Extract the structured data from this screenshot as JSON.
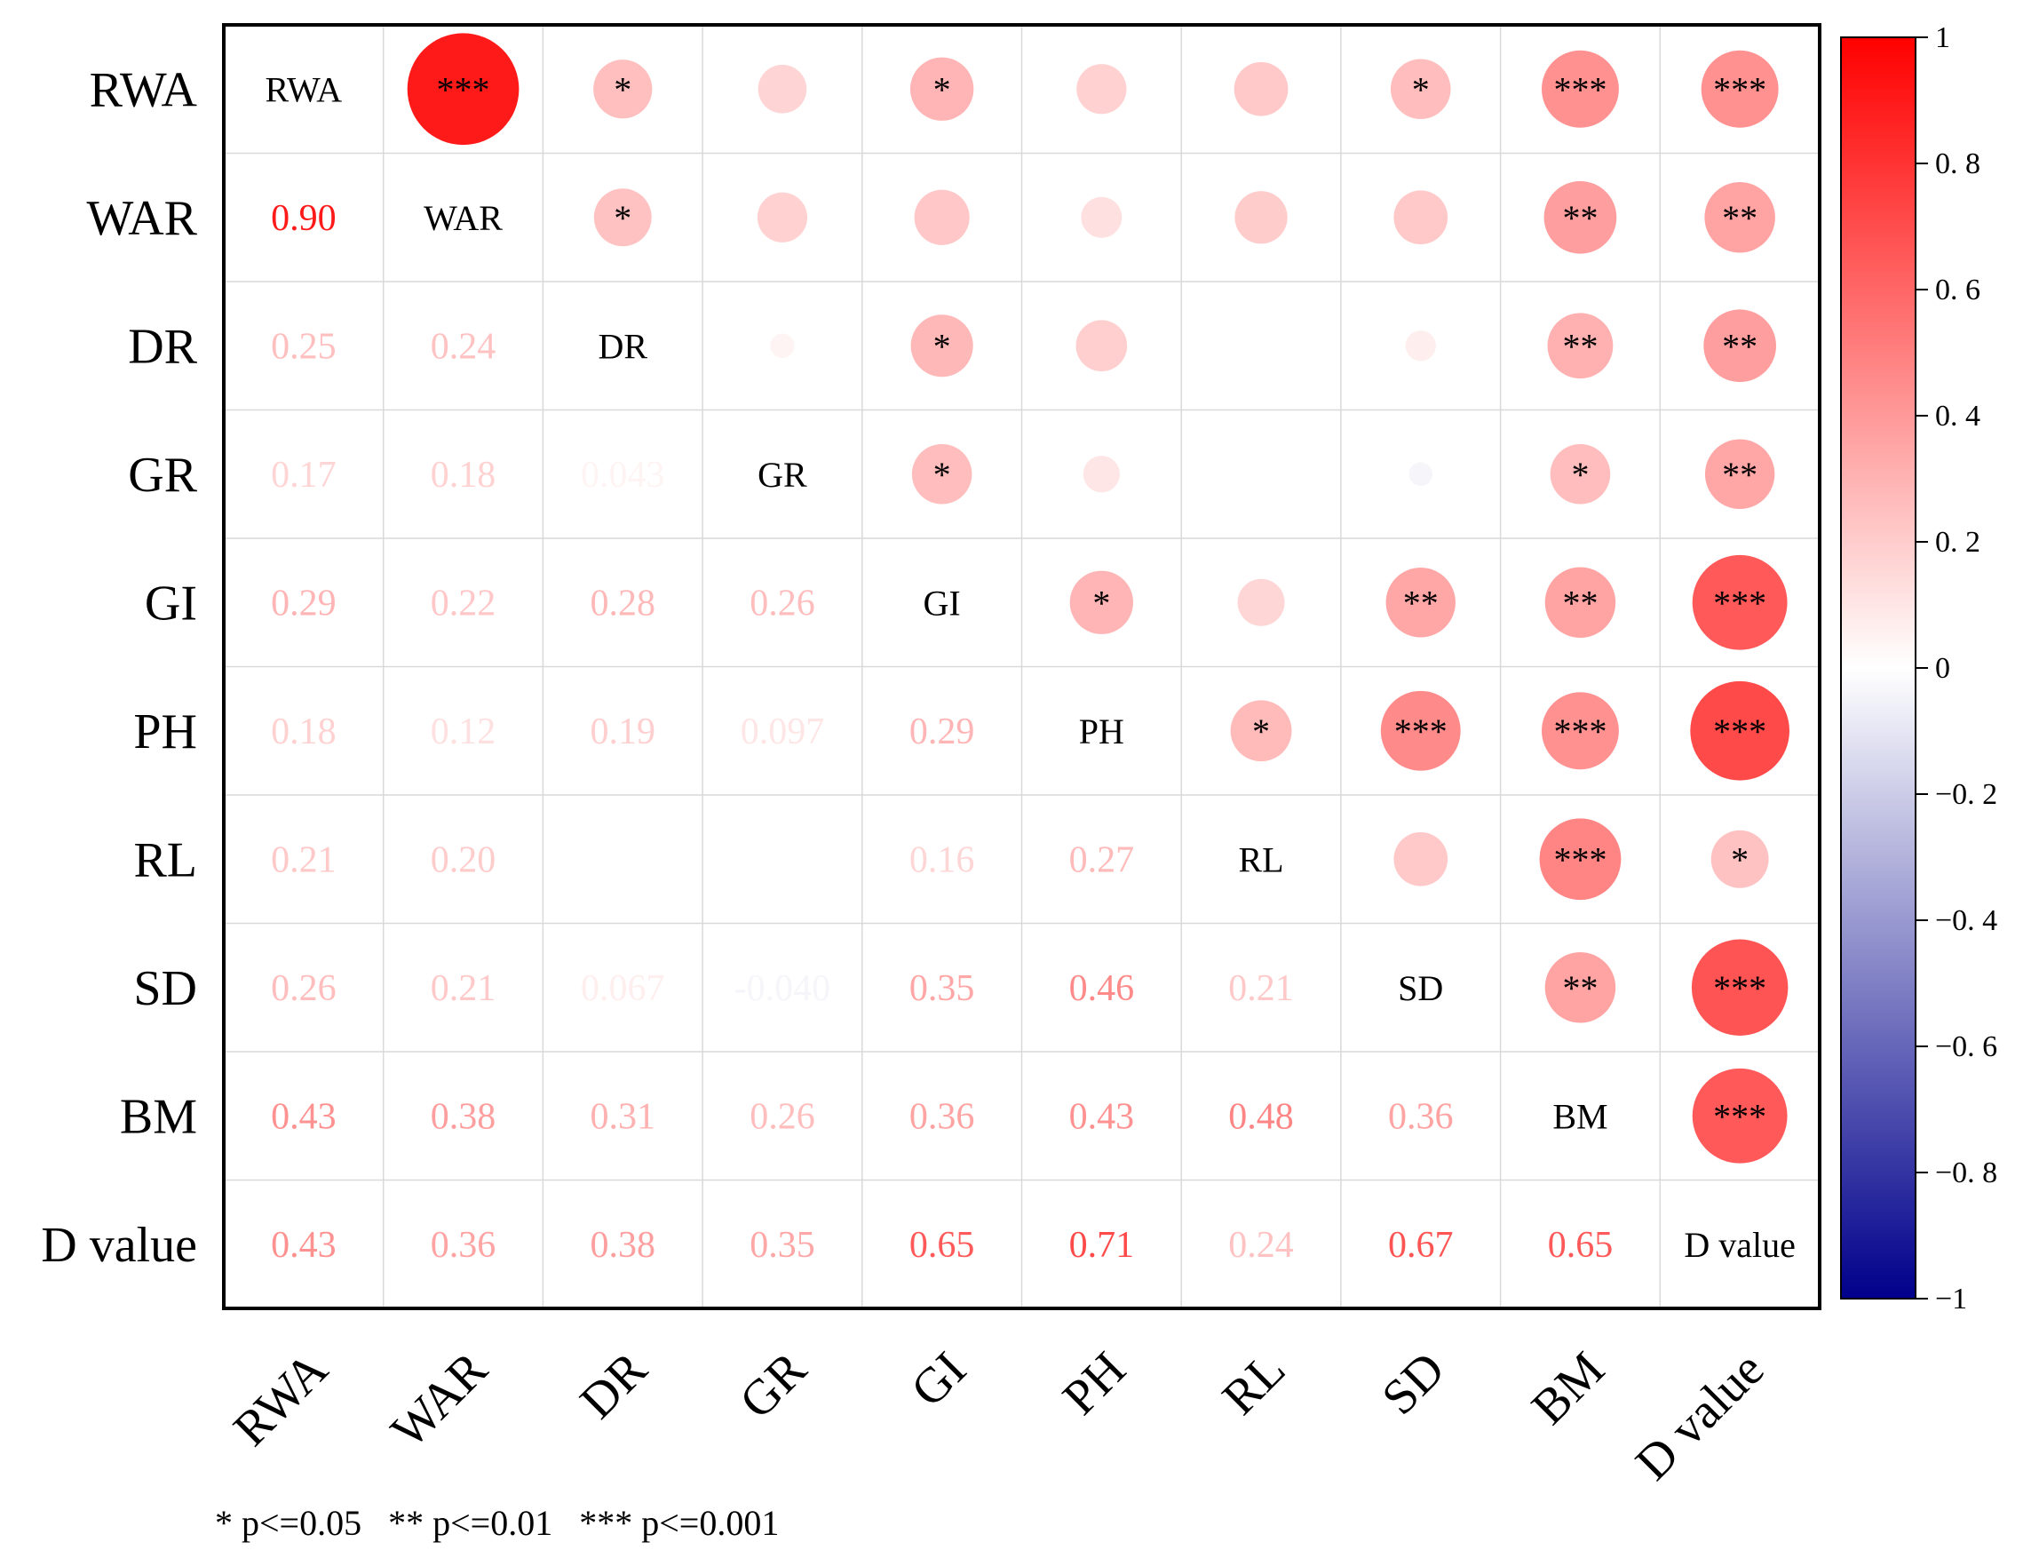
{
  "chart_data": {
    "type": "heatmap",
    "subtype": "correlation-matrix",
    "variables": [
      "RWA",
      "WAR",
      "DR",
      "GR",
      "GI",
      "PH",
      "RL",
      "SD",
      "BM",
      "D value"
    ],
    "lower_triangle_values": [
      [],
      [
        "0.90"
      ],
      [
        "0.25",
        "0.24"
      ],
      [
        "0.17",
        "0.18",
        "0.043"
      ],
      [
        "0.29",
        "0.22",
        "0.28",
        "0.26"
      ],
      [
        "0.18",
        "0.12",
        "0.19",
        "0.097",
        "0.29"
      ],
      [
        "0.21",
        "0.20",
        "",
        "",
        "0.16",
        "0.27"
      ],
      [
        "0.26",
        "0.21",
        "0.067",
        "-0.040",
        "0.35",
        "0.46",
        "0.21"
      ],
      [
        "0.43",
        "0.38",
        "0.31",
        "0.26",
        "0.36",
        "0.43",
        "0.48",
        "0.36"
      ],
      [
        "0.43",
        "0.36",
        "0.38",
        "0.35",
        "0.65",
        "0.71",
        "0.24",
        "0.67",
        "0.65"
      ]
    ],
    "significance_upper": [
      [
        "",
        "***",
        "*",
        "",
        "*",
        "",
        "",
        "*",
        "***",
        "***"
      ],
      [
        "",
        "",
        "*",
        "",
        "",
        "",
        "",
        "",
        "**",
        "**"
      ],
      [
        "",
        "",
        "",
        "",
        "*",
        "",
        "",
        "",
        "**",
        "**"
      ],
      [
        "",
        "",
        "",
        "",
        "*",
        "",
        "",
        "",
        "*",
        "**"
      ],
      [
        "",
        "",
        "",
        "",
        "",
        "*",
        "",
        "**",
        "**",
        "***"
      ],
      [
        "",
        "",
        "",
        "",
        "",
        "",
        "*",
        "***",
        "***",
        "***"
      ],
      [
        "",
        "",
        "",
        "",
        "",
        "",
        "",
        "",
        "***",
        "*"
      ],
      [
        "",
        "",
        "",
        "",
        "",
        "",
        "",
        "",
        "**",
        "***"
      ],
      [
        "",
        "",
        "",
        "",
        "",
        "",
        "",
        "",
        "",
        "***"
      ],
      [
        "",
        "",
        "",
        "",
        "",
        "",
        "",
        "",
        "",
        ""
      ]
    ],
    "colorbar": {
      "range": [
        -1,
        1
      ],
      "ticks": [
        "1",
        "0. 8",
        "0. 6",
        "0. 4",
        "0. 2",
        "0",
        "−0. 2",
        "−0. 4",
        "−0. 6",
        "−0. 8",
        "−1"
      ],
      "low_color": "#00008B",
      "mid_color": "#FFFFFF",
      "high_color": "#FF0000"
    },
    "legend_note": "* p<=0.05   ** p<=0.01   *** p<=0.001"
  }
}
